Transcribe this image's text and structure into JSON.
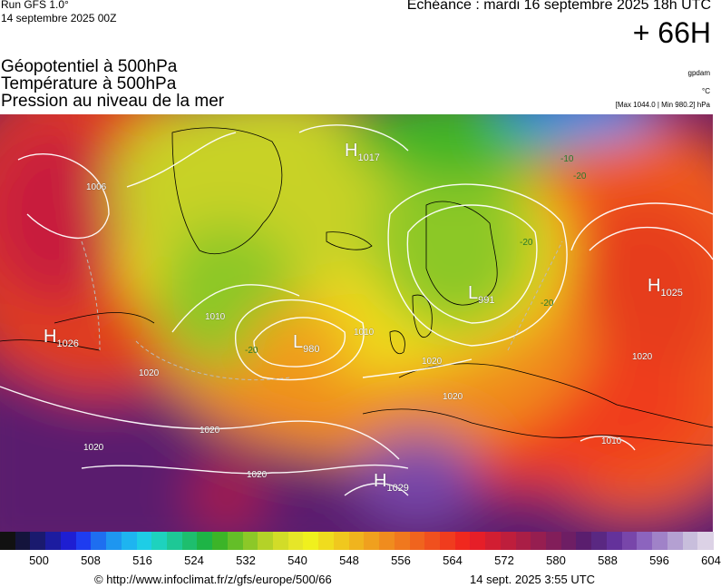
{
  "header": {
    "run": "Run GFS 1.0°",
    "run_date": "14 septembre 2025 00Z",
    "echeance": "Echéance : mardi 16 septembre 2025 18h UTC",
    "lead_time": "+ 66H"
  },
  "layers": {
    "geopotential": "Géopotentiel à 500hPa",
    "temperature": "Température à 500hPa",
    "pressure": "Pression au niveau de la mer"
  },
  "units": {
    "geopotential": "gpdam",
    "temperature": "°C",
    "pressure": "[Max 1044.0 | Min 980.2] hPa"
  },
  "map": {
    "centers": [
      {
        "type": "H",
        "value": "1025"
      },
      {
        "type": "H",
        "value": "1026"
      },
      {
        "type": "H",
        "value": "1029"
      },
      {
        "type": "H",
        "value": "1017"
      },
      {
        "type": "L",
        "value": "980"
      },
      {
        "type": "L",
        "value": "991"
      }
    ],
    "isobar_labels": [
      "1006",
      "1010",
      "1010",
      "1020",
      "1020",
      "1020",
      "1020",
      "1020",
      "1020",
      "1020",
      "1010"
    ],
    "temperature_labels": [
      "-20",
      "-20",
      "-10",
      "-20",
      "-20"
    ]
  },
  "scale": {
    "colors": [
      "#111111",
      "#14143c",
      "#1a1a6e",
      "#1c1ca0",
      "#1e1ed2",
      "#1e3cf0",
      "#1e6ef0",
      "#1e96f0",
      "#1eb4f0",
      "#1ecde6",
      "#1ed2be",
      "#1ec896",
      "#1ebe6e",
      "#1eb446",
      "#3cb428",
      "#64be28",
      "#8cc828",
      "#b4d228",
      "#d2dc28",
      "#e6e628",
      "#f0f01e",
      "#f0dc1e",
      "#f0c81e",
      "#f0b41e",
      "#f0a01e",
      "#f08c1e",
      "#f0781e",
      "#f0641e",
      "#f0501e",
      "#f03c1e",
      "#f0281e",
      "#e61e28",
      "#d21e32",
      "#be1e3c",
      "#aa1e46",
      "#961e50",
      "#821e5a",
      "#6e1e64",
      "#5a1e6e",
      "#5a2882",
      "#64329b",
      "#7846aa",
      "#8c64be",
      "#a082c8",
      "#b4a0d2",
      "#c8bedc",
      "#dcd2e6"
    ],
    "ticks": [
      "500",
      "508",
      "516",
      "524",
      "532",
      "540",
      "548",
      "556",
      "564",
      "572",
      "580",
      "588",
      "596",
      "604"
    ]
  },
  "footer": {
    "credit": "© http://www.infoclimat.fr/z/gfs/europe/500/66",
    "stamp": "14 sept. 2025  3:55 UTC"
  }
}
